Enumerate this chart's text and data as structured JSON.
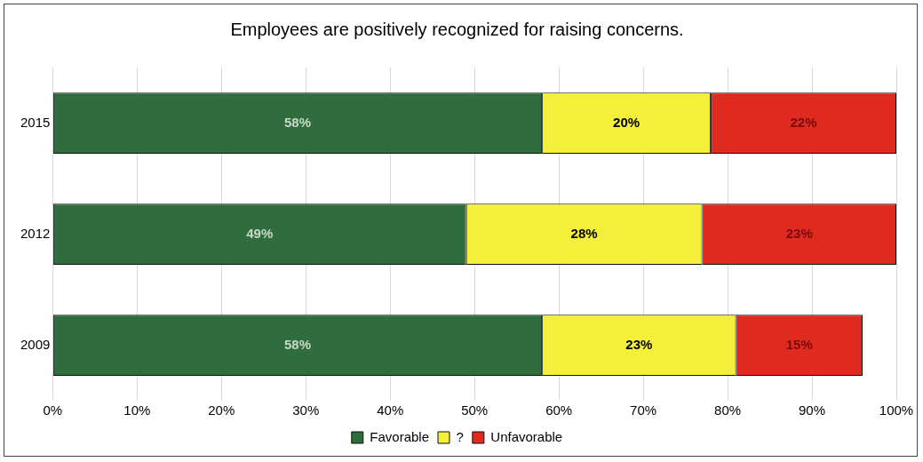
{
  "chart_data": {
    "type": "bar",
    "title": "Employees are positively recognized for raising concerns.",
    "orientation": "horizontal",
    "stacked": true,
    "categories": [
      "2015",
      "2012",
      "2009"
    ],
    "series": [
      {
        "name": "Favorable",
        "color": "#2f6e3c",
        "values": [
          58,
          49,
          58
        ],
        "value_labels": [
          "58%",
          "49%",
          "58%"
        ]
      },
      {
        "name": "?",
        "color": "#f4ef3a",
        "values": [
          20,
          28,
          23
        ],
        "value_labels": [
          "20%",
          "28%",
          "23%"
        ]
      },
      {
        "name": "Unfavorable",
        "color": "#e02a20",
        "values": [
          22,
          23,
          15
        ],
        "value_labels": [
          "22%",
          "23%",
          "15%"
        ]
      }
    ],
    "xlim": [
      0,
      100
    ],
    "xticks": [
      {
        "value": 0,
        "label": "0%"
      },
      {
        "value": 10,
        "label": "10%"
      },
      {
        "value": 20,
        "label": "20%"
      },
      {
        "value": 30,
        "label": "30%"
      },
      {
        "value": 40,
        "label": "40%"
      },
      {
        "value": 50,
        "label": "50%"
      },
      {
        "value": 60,
        "label": "60%"
      },
      {
        "value": 70,
        "label": "70%"
      },
      {
        "value": 80,
        "label": "80%"
      },
      {
        "value": 90,
        "label": "90%"
      },
      {
        "value": 100,
        "label": "100%"
      }
    ],
    "grid": "x",
    "legend": "bottom"
  }
}
